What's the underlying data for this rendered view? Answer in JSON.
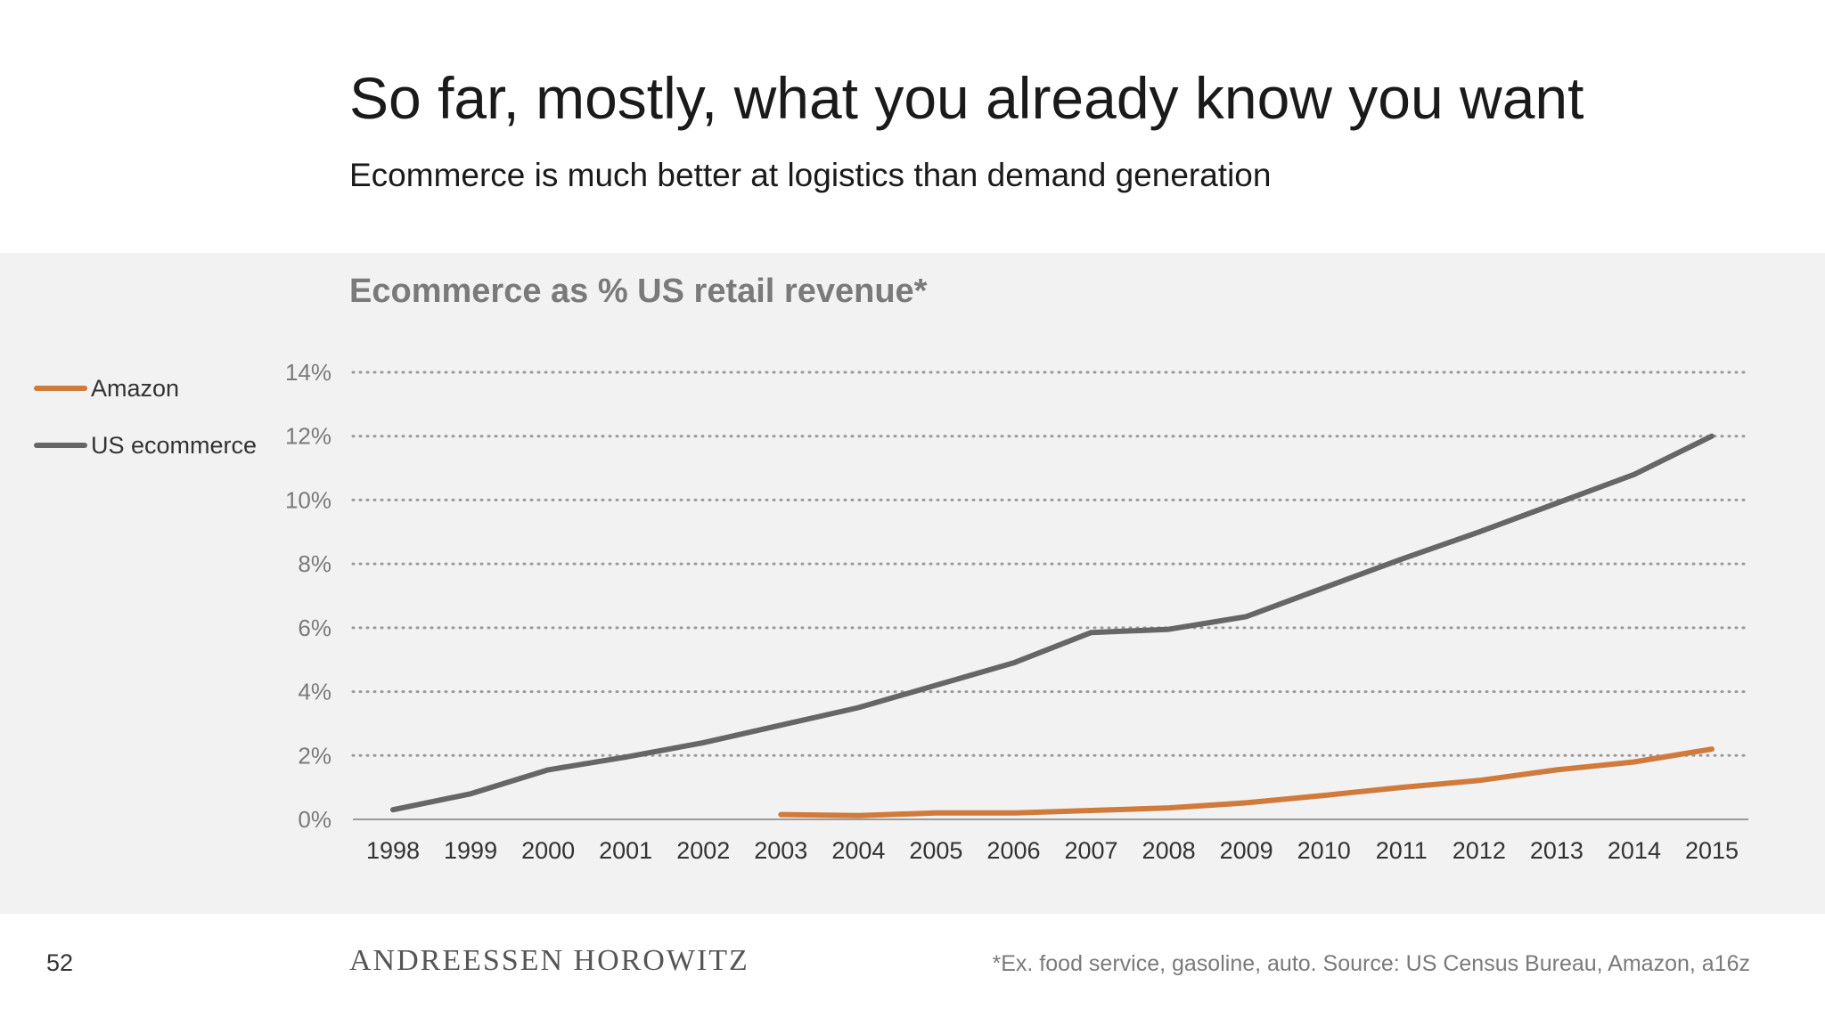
{
  "slide": {
    "title": "So far, mostly, what you already know you want",
    "subtitle": "Ecommerce is much better at logistics than demand generation",
    "page_number": "52",
    "brand": "ANDREESSEN HOROWITZ",
    "footnote": "*Ex. food service, gasoline, auto. Source: US Census Bureau, Amazon, a16z"
  },
  "colors": {
    "amazon": "#d07a3c",
    "us_ecommerce": "#666666",
    "panel_bg": "#f2f2f2",
    "grid": "#9a9a9a",
    "axis_text": "#7a7a7a"
  },
  "chart_data": {
    "type": "line",
    "title": "Ecommerce as % US retail revenue*",
    "xlabel": "",
    "ylabel": "",
    "categories": [
      "1998",
      "1999",
      "2000",
      "2001",
      "2002",
      "2003",
      "2004",
      "2005",
      "2006",
      "2007",
      "2008",
      "2009",
      "2010",
      "2011",
      "2012",
      "2013",
      "2014",
      "2015"
    ],
    "ylim": [
      0,
      14
    ],
    "y_ticks": [
      0,
      2,
      4,
      6,
      8,
      10,
      12,
      14
    ],
    "y_tick_labels": [
      "0%",
      "2%",
      "4%",
      "6%",
      "8%",
      "10%",
      "12%",
      "14%"
    ],
    "grid": "horizontal dotted",
    "legend_position": "left",
    "series": [
      {
        "name": "Amazon",
        "color": "#d07a3c",
        "values": [
          null,
          null,
          null,
          null,
          null,
          0.15,
          0.12,
          0.2,
          0.2,
          0.28,
          0.36,
          0.52,
          0.75,
          1.0,
          1.22,
          1.55,
          1.8,
          2.2
        ]
      },
      {
        "name": "US ecommerce",
        "color": "#666666",
        "values": [
          0.3,
          0.8,
          1.55,
          1.95,
          2.4,
          2.95,
          3.5,
          4.2,
          4.9,
          5.85,
          5.95,
          6.35,
          7.25,
          8.15,
          9.0,
          9.9,
          10.8,
          12.0
        ]
      }
    ]
  }
}
